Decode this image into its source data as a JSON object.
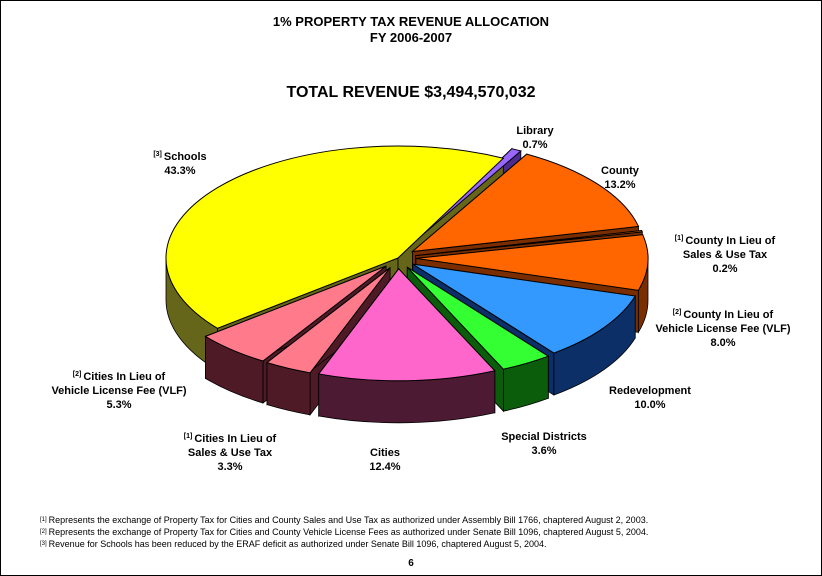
{
  "title_line1": "1% PROPERTY TAX REVENUE ALLOCATION",
  "title_line2": "FY 2006-2007",
  "total_revenue": "TOTAL REVENUE  $3,494,570,032",
  "page_number": "6",
  "footnotes": [
    {
      "mark": "[1]",
      "text": "Represents the exchange of Property Tax for Cities and County Sales and Use Tax as authorized under Assembly Bill 1766, chaptered August 2, 2003."
    },
    {
      "mark": "[2]",
      "text": "Represents the exchange of Property Tax for Cities and County Vehicle License Fees as authorized under Senate Bill 1096, chaptered August 5, 2004."
    },
    {
      "mark": "[3]",
      "text": "Revenue for Schools has been reduced by the ERAF deficit as authorized under Senate Bill 1096, chaptered August 5, 2004."
    }
  ],
  "chart_data": {
    "type": "pie",
    "title": "1% PROPERTY TAX REVENUE ALLOCATION",
    "subtitle": "FY 2006-2007",
    "slices": [
      {
        "key": "library",
        "mark": "",
        "label_lines": [
          "Library"
        ],
        "pct_label": "0.7%",
        "value": 0.7,
        "color": "#9966ff",
        "side": "#4b2b8f"
      },
      {
        "key": "county",
        "mark": "",
        "label_lines": [
          "County"
        ],
        "pct_label": "13.2%",
        "value": 13.2,
        "color": "#ff6600",
        "side": "#7a2e00"
      },
      {
        "key": "county_sut",
        "mark": "[1]",
        "label_lines": [
          "County In Lieu of",
          "Sales & Use Tax"
        ],
        "pct_label": "0.2%",
        "value": 0.2,
        "color": "#ff6600",
        "side": "#7a2e00"
      },
      {
        "key": "county_vlf",
        "mark": "[2]",
        "label_lines": [
          "County In Lieu of",
          "Vehicle License Fee (VLF)"
        ],
        "pct_label": "8.0%",
        "value": 8.0,
        "color": "#ff6600",
        "side": "#7a2e00"
      },
      {
        "key": "redev",
        "mark": "",
        "label_lines": [
          "Redevelopment"
        ],
        "pct_label": "10.0%",
        "value": 10.0,
        "color": "#3399ff",
        "side": "#0b2f66"
      },
      {
        "key": "special",
        "mark": "",
        "label_lines": [
          "Special Districts"
        ],
        "pct_label": "3.6%",
        "value": 3.6,
        "color": "#33ff33",
        "side": "#0b5c0b"
      },
      {
        "key": "cities",
        "mark": "",
        "label_lines": [
          "Cities"
        ],
        "pct_label": "12.4%",
        "value": 12.4,
        "color": "#ff66cc",
        "side": "#4d1a33"
      },
      {
        "key": "cities_sut",
        "mark": "[1]",
        "label_lines": [
          "Cities In Lieu of",
          "Sales & Use Tax"
        ],
        "pct_label": "3.3%",
        "value": 3.3,
        "color": "#ff7a8a",
        "side": "#4d1a26"
      },
      {
        "key": "cities_vlf",
        "mark": "[2]",
        "label_lines": [
          "Cities In Lieu of",
          "Vehicle License Fee (VLF)"
        ],
        "pct_label": "5.3%",
        "value": 5.3,
        "color": "#ff7a8a",
        "side": "#4d1a26"
      },
      {
        "key": "schools",
        "mark": "[3]",
        "label_lines": [
          "Schools"
        ],
        "pct_label": "43.3%",
        "value": 43.3,
        "color": "#ffff00",
        "side": "#66661a"
      }
    ]
  }
}
